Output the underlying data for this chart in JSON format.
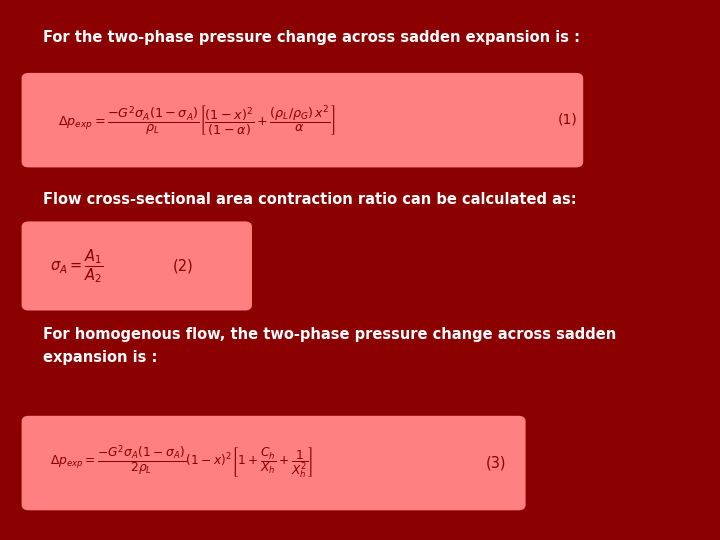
{
  "background_color": "#8B0000",
  "box_color": "#FF8080",
  "text_color": "#FFFFFF",
  "title1": "For the two-phase pressure change across sadden expansion is :",
  "title2": "Flow cross-sectional area contraction ratio can be calculated as:",
  "title3_line1": "For homogenous flow, the two-phase pressure change across sadden",
  "title3_line2": "expansion is :",
  "eq1_num": "(1)",
  "eq2_num": "(2)",
  "eq3_num": "(3)",
  "figsize": [
    7.2,
    5.4
  ],
  "dpi": 100
}
